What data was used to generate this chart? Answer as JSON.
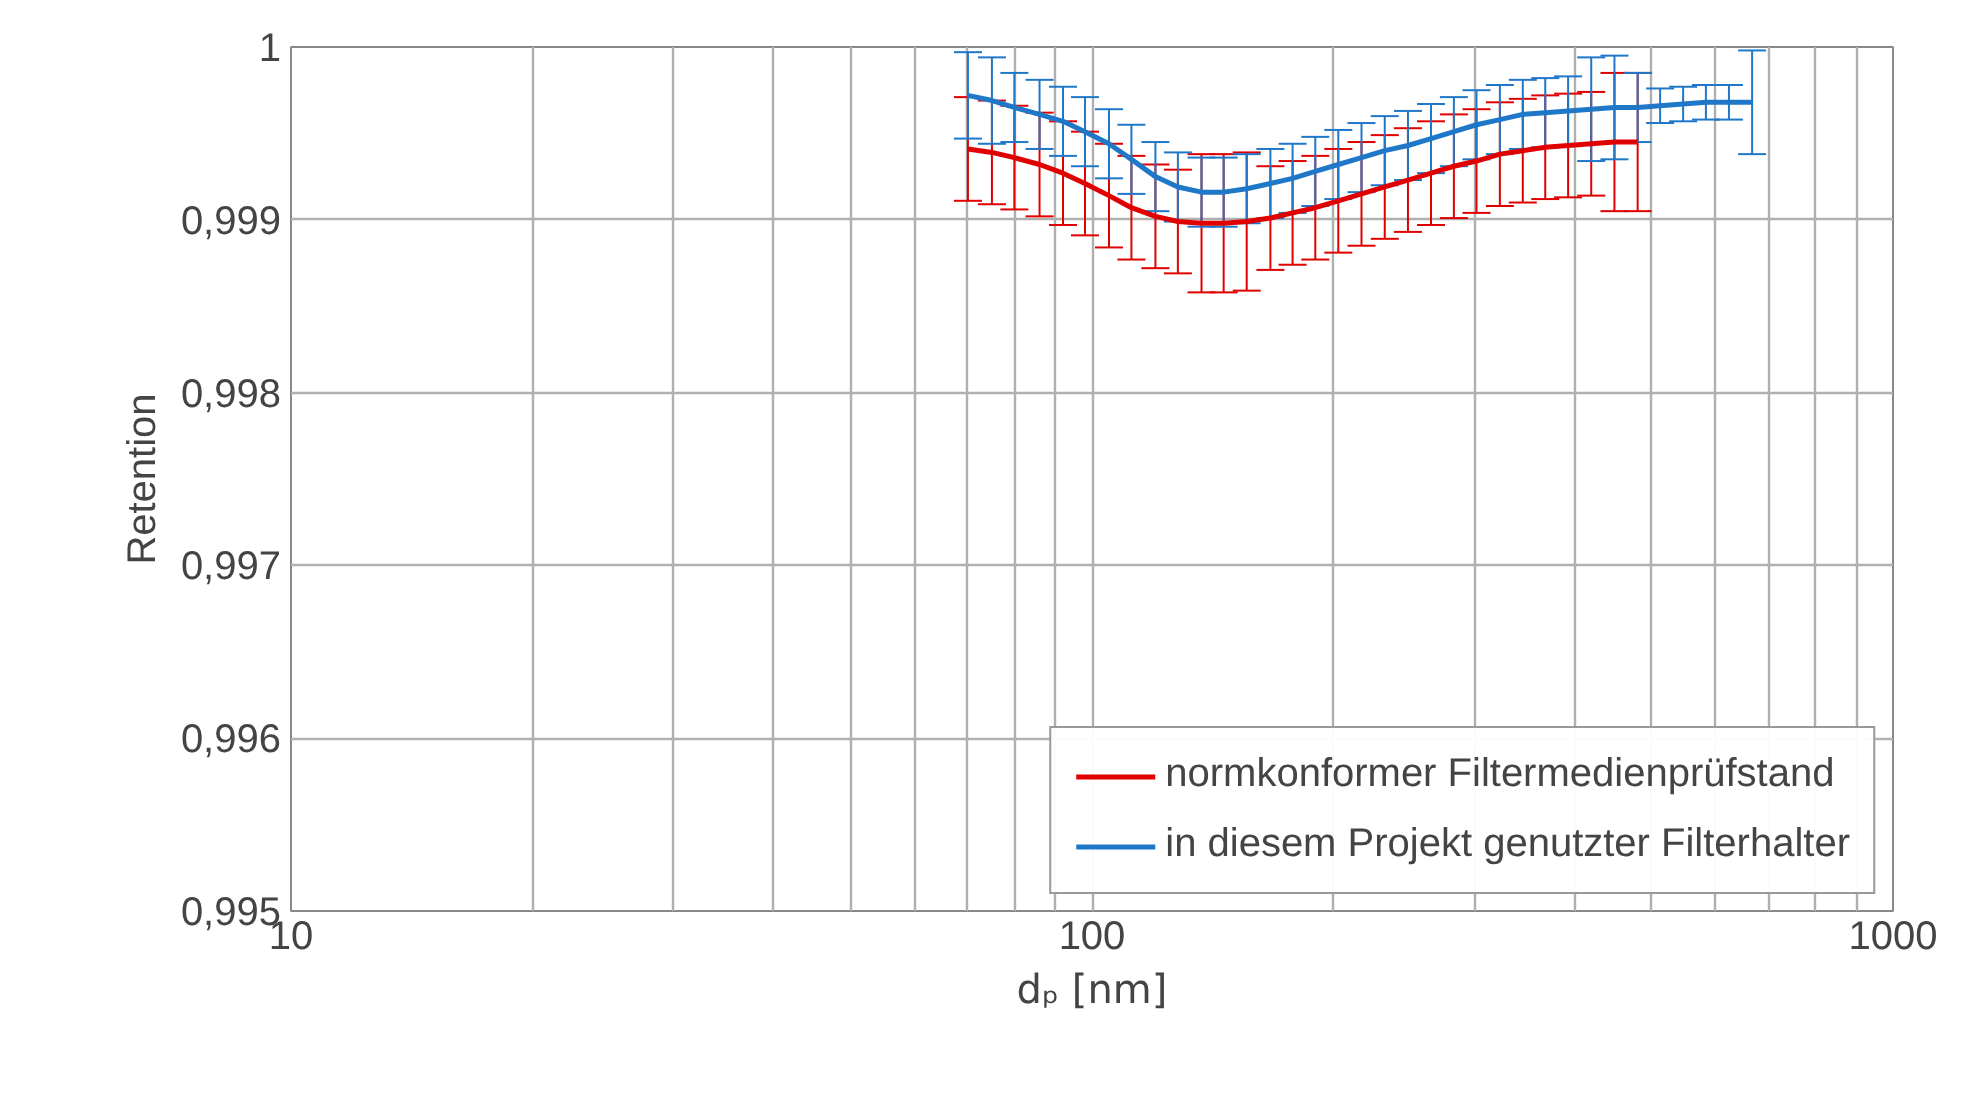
{
  "chart_data": {
    "type": "line",
    "xlabel": "dₚ [nm]",
    "ylabel": "Retention",
    "log": "x",
    "grid": true,
    "legend": "bottom right",
    "marker": "none",
    "line_style": "solid",
    "xlim": [
      10,
      1000
    ],
    "ylim": [
      0.995,
      1
    ],
    "xticks": [
      10,
      {
        "value": 20,
        "label": null
      },
      {
        "value": 30,
        "label": null
      },
      {
        "value": 40,
        "label": null
      },
      {
        "value": 50,
        "label": null
      },
      {
        "value": 60,
        "label": null
      },
      {
        "value": 70,
        "label": null
      },
      {
        "value": 80,
        "label": null
      },
      {
        "value": 90,
        "label": null
      },
      100,
      {
        "value": 200,
        "label": null
      },
      {
        "value": 300,
        "label": null
      },
      {
        "value": 400,
        "label": null
      },
      {
        "value": 500,
        "label": null
      },
      {
        "value": 600,
        "label": null
      },
      {
        "value": 700,
        "label": null
      },
      {
        "value": 800,
        "label": null
      },
      {
        "value": 900,
        "label": null
      },
      1000
    ],
    "yticks": [
      {
        "value": 0.995,
        "label": "0,995"
      },
      {
        "value": 0.996,
        "label": "0,996"
      },
      {
        "value": 0.997,
        "label": "0,997"
      },
      {
        "value": 0.998,
        "label": "0,998"
      },
      {
        "value": 0.999,
        "label": "0,999"
      },
      1
    ],
    "series": [
      {
        "name": "normkonformer Filtermedienprüfstand",
        "color": "#e00000",
        "x": [
          70,
          75,
          80,
          86,
          92,
          98,
          105,
          112,
          120,
          128,
          137,
          146,
          156,
          167,
          178,
          190,
          203,
          217,
          232,
          248,
          265,
          283,
          302,
          323,
          345,
          368,
          393,
          420,
          449,
          480
        ],
        "values": [
          0.99941,
          0.99939,
          0.99936,
          0.99932,
          0.99927,
          0.99921,
          0.99914,
          0.99907,
          0.99902,
          0.99899,
          0.99898,
          0.99898,
          0.99899,
          0.99901,
          0.99904,
          0.99907,
          0.99911,
          0.99915,
          0.99919,
          0.99923,
          0.99927,
          0.99931,
          0.99934,
          0.99938,
          0.9994,
          0.99942,
          0.99943,
          0.99944,
          0.99945,
          0.99945
        ],
        "errors": [
          0.0003,
          0.0003,
          0.0003,
          0.0003,
          0.0003,
          0.0003,
          0.0003,
          0.0003,
          0.0003,
          0.0003,
          0.0004,
          0.0004,
          0.0004,
          0.0003,
          0.0003,
          0.0003,
          0.0003,
          0.0003,
          0.0003,
          0.0003,
          0.0003,
          0.0003,
          0.0003,
          0.0003,
          0.0003,
          0.0003,
          0.0003,
          0.0003,
          0.0004,
          0.0004
        ]
      },
      {
        "name": "in diesem Projekt genutzter Filterhalter",
        "color": "#1f77c8",
        "x": [
          70,
          75,
          80,
          86,
          92,
          98,
          105,
          112,
          120,
          128,
          137,
          146,
          156,
          167,
          178,
          190,
          203,
          217,
          232,
          248,
          265,
          283,
          302,
          323,
          345,
          368,
          393,
          420,
          449,
          480,
          512,
          547,
          584,
          624,
          667
        ],
        "values": [
          0.99972,
          0.99969,
          0.99965,
          0.99961,
          0.99957,
          0.99951,
          0.99944,
          0.99935,
          0.99925,
          0.99919,
          0.99916,
          0.99916,
          0.99918,
          0.99921,
          0.99924,
          0.99928,
          0.99932,
          0.99936,
          0.9994,
          0.99943,
          0.99947,
          0.99951,
          0.99955,
          0.99958,
          0.99961,
          0.99962,
          0.99963,
          0.99964,
          0.99965,
          0.99965,
          0.99966,
          0.99967,
          0.99968,
          0.99968,
          0.99968
        ],
        "errors": [
          0.00025,
          0.00025,
          0.0002,
          0.0002,
          0.0002,
          0.0002,
          0.0002,
          0.0002,
          0.0002,
          0.0002,
          0.0002,
          0.0002,
          0.0002,
          0.0002,
          0.0002,
          0.0002,
          0.0002,
          0.0002,
          0.0002,
          0.0002,
          0.0002,
          0.0002,
          0.0002,
          0.0002,
          0.0002,
          0.0002,
          0.0002,
          0.0003,
          0.0003,
          0.0002,
          0.0001,
          0.0001,
          0.0001,
          0.0001,
          0.0003
        ]
      }
    ]
  }
}
